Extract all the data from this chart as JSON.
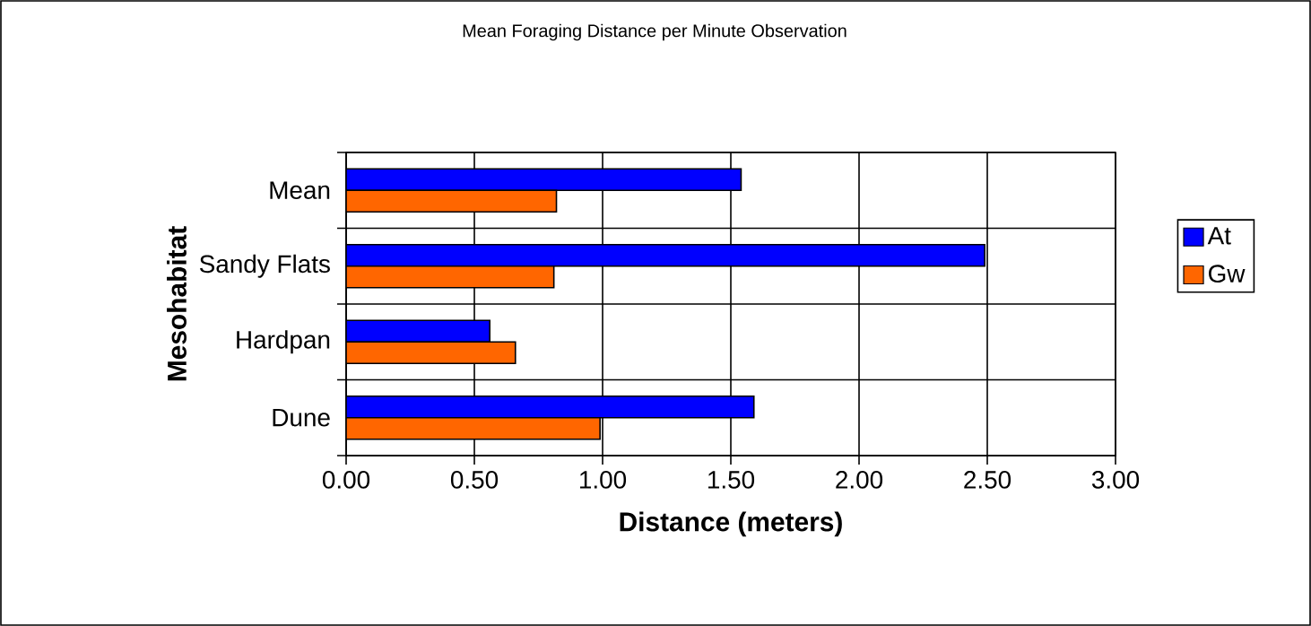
{
  "chart_data": {
    "type": "bar",
    "orientation": "horizontal",
    "title": "Mean Foraging Distance per Minute Observation",
    "xlabel": "Distance (meters)",
    "ylabel": "Mesohabitat",
    "categories": [
      "Mean",
      "Sandy Flats",
      "Hardpan",
      "Dune"
    ],
    "series": [
      {
        "name": "At",
        "color": "#0000ff",
        "values": [
          1.54,
          2.49,
          0.56,
          1.59
        ]
      },
      {
        "name": "Gw",
        "color": "#ff6600",
        "values": [
          0.82,
          0.81,
          0.66,
          0.99
        ]
      }
    ],
    "xlim": [
      0,
      3
    ],
    "xticks": [
      {
        "value": 0,
        "label": "0.00"
      },
      {
        "value": 0.5,
        "label": "0.50"
      },
      {
        "value": 1,
        "label": "1.00"
      },
      {
        "value": 1.5,
        "label": "1.50"
      },
      {
        "value": 2,
        "label": "2.00"
      },
      {
        "value": 2.5,
        "label": "2.50"
      },
      {
        "value": 3,
        "label": "3.00"
      }
    ],
    "grid": true,
    "legend": "right"
  }
}
